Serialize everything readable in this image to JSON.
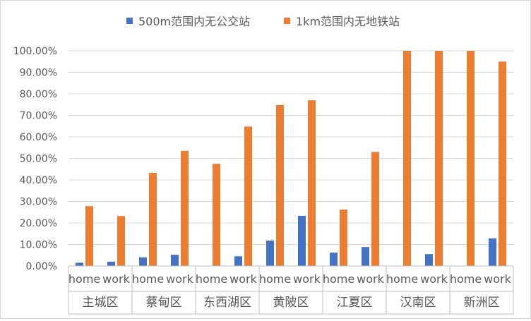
{
  "chart_data": {
    "type": "bar",
    "title": "",
    "ylim": [
      0,
      1.0
    ],
    "y_ticks": [
      "0.00%",
      "10.00%",
      "20.00%",
      "30.00%",
      "40.00%",
      "50.00%",
      "60.00%",
      "70.00%",
      "80.00%",
      "90.00%",
      "100.00%"
    ],
    "grid": "horizontal",
    "legend_position": "top",
    "groups": [
      "主城区",
      "蔡甸区",
      "东西湖区",
      "黄陂区",
      "江夏区",
      "汉南区",
      "新洲区"
    ],
    "subcategories": [
      "home",
      "work"
    ],
    "series": [
      {
        "name": "500m范围内无公交站",
        "color": "#4472C4",
        "values": [
          0.015,
          0.02,
          0.04,
          0.052,
          0.0,
          0.045,
          0.118,
          0.233,
          0.062,
          0.088,
          0.0,
          0.055,
          0.0,
          0.128
        ]
      },
      {
        "name": "1km范围内无地铁站",
        "color": "#ED7D31",
        "values": [
          0.278,
          0.232,
          0.433,
          0.535,
          0.475,
          0.648,
          0.748,
          0.77,
          0.262,
          0.53,
          1.0,
          1.0,
          1.0,
          0.95
        ]
      }
    ]
  }
}
